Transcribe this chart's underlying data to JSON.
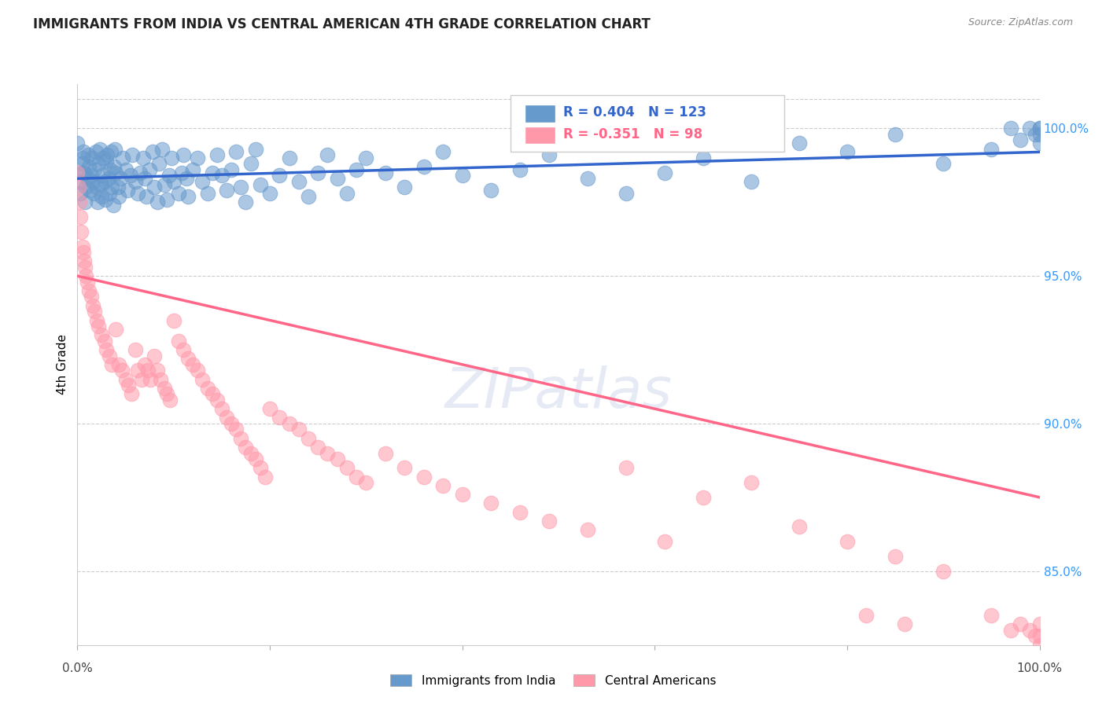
{
  "title": "IMMIGRANTS FROM INDIA VS CENTRAL AMERICAN 4TH GRADE CORRELATION CHART",
  "source": "Source: ZipAtlas.com",
  "ylabel": "4th Grade",
  "right_yticks": [
    85.0,
    90.0,
    95.0,
    100.0
  ],
  "right_yticklabels": [
    "85.0%",
    "90.0%",
    "95.0%",
    "100.0%"
  ],
  "watermark": "ZIPatlas",
  "legend_blue_label": "Immigrants from India",
  "legend_pink_label": "Central Americans",
  "R_blue": 0.404,
  "N_blue": 123,
  "R_pink": -0.351,
  "N_pink": 98,
  "blue_color": "#6699CC",
  "pink_color": "#FF99AA",
  "blue_line_color": "#3366CC",
  "pink_line_color": "#FF6688",
  "xmin": 0.0,
  "xmax": 1.0,
  "ymin": 82.5,
  "ymax": 101.5,
  "blue_scatter_x": [
    0.0,
    0.002,
    0.003,
    0.004,
    0.005,
    0.005,
    0.006,
    0.007,
    0.008,
    0.009,
    0.01,
    0.011,
    0.012,
    0.013,
    0.014,
    0.015,
    0.016,
    0.017,
    0.018,
    0.019,
    0.02,
    0.021,
    0.022,
    0.023,
    0.024,
    0.025,
    0.026,
    0.027,
    0.028,
    0.029,
    0.03,
    0.031,
    0.032,
    0.033,
    0.034,
    0.035,
    0.036,
    0.037,
    0.038,
    0.039,
    0.04,
    0.042,
    0.043,
    0.045,
    0.047,
    0.05,
    0.052,
    0.055,
    0.057,
    0.06,
    0.063,
    0.065,
    0.068,
    0.07,
    0.072,
    0.075,
    0.078,
    0.08,
    0.083,
    0.085,
    0.088,
    0.09,
    0.093,
    0.095,
    0.098,
    0.1,
    0.105,
    0.108,
    0.11,
    0.113,
    0.115,
    0.12,
    0.125,
    0.13,
    0.135,
    0.14,
    0.145,
    0.15,
    0.155,
    0.16,
    0.165,
    0.17,
    0.175,
    0.18,
    0.185,
    0.19,
    0.2,
    0.21,
    0.22,
    0.23,
    0.24,
    0.25,
    0.26,
    0.27,
    0.28,
    0.29,
    0.3,
    0.32,
    0.34,
    0.36,
    0.38,
    0.4,
    0.43,
    0.46,
    0.49,
    0.53,
    0.57,
    0.61,
    0.65,
    0.7,
    0.75,
    0.8,
    0.85,
    0.9,
    0.95,
    0.97,
    0.98,
    0.99,
    0.995,
    1.0,
    1.0,
    1.0,
    1.0
  ],
  "blue_scatter_y": [
    99.5,
    98.2,
    97.8,
    98.5,
    99.0,
    98.8,
    99.2,
    98.5,
    97.5,
    98.0,
    98.3,
    99.1,
    98.7,
    97.9,
    98.4,
    99.0,
    98.2,
    97.8,
    98.6,
    99.2,
    98.0,
    97.5,
    98.8,
    99.3,
    98.1,
    97.7,
    98.4,
    99.0,
    98.2,
    97.6,
    98.9,
    99.1,
    98.3,
    97.8,
    98.6,
    99.2,
    98.0,
    97.4,
    98.7,
    99.3,
    98.5,
    98.0,
    97.7,
    98.3,
    99.0,
    98.6,
    97.9,
    98.4,
    99.1,
    98.2,
    97.8,
    98.5,
    99.0,
    98.3,
    97.7,
    98.6,
    99.2,
    98.0,
    97.5,
    98.8,
    99.3,
    98.1,
    97.6,
    98.4,
    99.0,
    98.2,
    97.8,
    98.5,
    99.1,
    98.3,
    97.7,
    98.6,
    99.0,
    98.2,
    97.8,
    98.5,
    99.1,
    98.4,
    97.9,
    98.6,
    99.2,
    98.0,
    97.5,
    98.8,
    99.3,
    98.1,
    97.8,
    98.4,
    99.0,
    98.2,
    97.7,
    98.5,
    99.1,
    98.3,
    97.8,
    98.6,
    99.0,
    98.5,
    98.0,
    98.7,
    99.2,
    98.4,
    97.9,
    98.6,
    99.1,
    98.3,
    97.8,
    98.5,
    99.0,
    98.2,
    99.5,
    99.2,
    99.8,
    98.8,
    99.3,
    100.0,
    99.6,
    100.0,
    99.8,
    99.5,
    100.0,
    99.8,
    100.0
  ],
  "pink_scatter_x": [
    0.0,
    0.001,
    0.002,
    0.003,
    0.004,
    0.005,
    0.006,
    0.007,
    0.008,
    0.009,
    0.01,
    0.012,
    0.014,
    0.016,
    0.018,
    0.02,
    0.022,
    0.025,
    0.028,
    0.03,
    0.033,
    0.036,
    0.04,
    0.043,
    0.046,
    0.05,
    0.053,
    0.056,
    0.06,
    0.063,
    0.067,
    0.07,
    0.073,
    0.076,
    0.08,
    0.083,
    0.086,
    0.09,
    0.093,
    0.096,
    0.1,
    0.105,
    0.11,
    0.115,
    0.12,
    0.125,
    0.13,
    0.135,
    0.14,
    0.145,
    0.15,
    0.155,
    0.16,
    0.165,
    0.17,
    0.175,
    0.18,
    0.185,
    0.19,
    0.195,
    0.2,
    0.21,
    0.22,
    0.23,
    0.24,
    0.25,
    0.26,
    0.27,
    0.28,
    0.29,
    0.3,
    0.32,
    0.34,
    0.36,
    0.38,
    0.4,
    0.43,
    0.46,
    0.49,
    0.53,
    0.57,
    0.61,
    0.65,
    0.7,
    0.75,
    0.8,
    0.85,
    0.9,
    0.95,
    0.97,
    0.98,
    0.99,
    0.995,
    1.0,
    1.0,
    1.0,
    0.82,
    0.86
  ],
  "pink_scatter_y": [
    98.5,
    98.0,
    97.5,
    97.0,
    96.5,
    96.0,
    95.8,
    95.5,
    95.3,
    95.0,
    94.8,
    94.5,
    94.3,
    94.0,
    93.8,
    93.5,
    93.3,
    93.0,
    92.8,
    92.5,
    92.3,
    92.0,
    93.2,
    92.0,
    91.8,
    91.5,
    91.3,
    91.0,
    92.5,
    91.8,
    91.5,
    92.0,
    91.8,
    91.5,
    92.3,
    91.8,
    91.5,
    91.2,
    91.0,
    90.8,
    93.5,
    92.8,
    92.5,
    92.2,
    92.0,
    91.8,
    91.5,
    91.2,
    91.0,
    90.8,
    90.5,
    90.2,
    90.0,
    89.8,
    89.5,
    89.2,
    89.0,
    88.8,
    88.5,
    88.2,
    90.5,
    90.2,
    90.0,
    89.8,
    89.5,
    89.2,
    89.0,
    88.8,
    88.5,
    88.2,
    88.0,
    89.0,
    88.5,
    88.2,
    87.9,
    87.6,
    87.3,
    87.0,
    86.7,
    86.4,
    88.5,
    86.0,
    87.5,
    88.0,
    86.5,
    86.0,
    85.5,
    85.0,
    83.5,
    83.0,
    83.2,
    83.0,
    82.8,
    82.5,
    82.8,
    83.2,
    83.5,
    83.2
  ],
  "blue_trendline_x": [
    0.0,
    1.0
  ],
  "blue_trendline_y": [
    98.3,
    99.2
  ],
  "pink_trendline_x": [
    0.0,
    1.0
  ],
  "pink_trendline_y": [
    95.0,
    87.5
  ]
}
